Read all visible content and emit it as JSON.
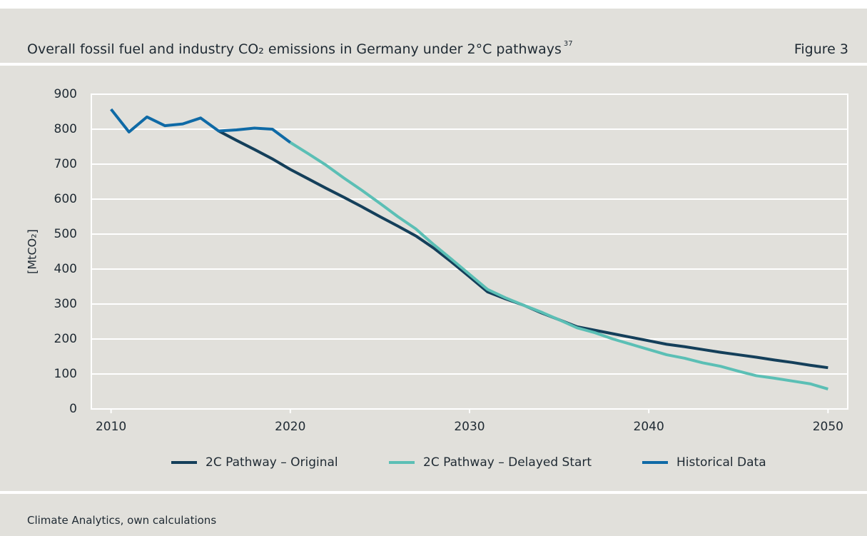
{
  "header": {
    "title": "Overall fossil fuel and industry CO₂ emissions in Germany under 2°C pathways",
    "footnote_ref": "37",
    "figure_label": "Figure 3"
  },
  "chart_data": {
    "type": "line",
    "y_label": "[MtCO₂]",
    "x": [
      2010,
      2011,
      2012,
      2013,
      2014,
      2015,
      2016,
      2017,
      2018,
      2019,
      2020,
      2021,
      2022,
      2023,
      2024,
      2025,
      2026,
      2027,
      2028,
      2029,
      2030,
      2031,
      2032,
      2033,
      2034,
      2035,
      2036,
      2037,
      2038,
      2039,
      2040,
      2041,
      2042,
      2043,
      2044,
      2045,
      2046,
      2047,
      2048,
      2049,
      2050
    ],
    "series": [
      {
        "name": "2C Pathway – Original",
        "color": "#143f5a",
        "values": [
          null,
          null,
          null,
          null,
          null,
          null,
          795,
          768,
          742,
          715,
          685,
          658,
          631,
          605,
          578,
          550,
          523,
          495,
          460,
          420,
          378,
          335,
          315,
          297,
          275,
          255,
          235,
          225,
          215,
          205,
          195,
          185,
          178,
          170,
          162,
          155,
          148,
          140,
          133,
          125,
          118
        ]
      },
      {
        "name": "2C Pathway – Delayed Start",
        "color": "#5bbfb5",
        "values": [
          null,
          null,
          null,
          null,
          null,
          null,
          null,
          null,
          null,
          null,
          762,
          730,
          697,
          660,
          625,
          588,
          550,
          515,
          470,
          428,
          385,
          342,
          318,
          297,
          277,
          255,
          232,
          218,
          200,
          185,
          170,
          155,
          145,
          132,
          122,
          108,
          95,
          88,
          80,
          72,
          57
        ]
      },
      {
        "name": "Historical Data",
        "color": "#0f6aa6",
        "values": [
          857,
          792,
          835,
          810,
          815,
          832,
          795,
          798,
          803,
          800,
          762,
          null,
          null,
          null,
          null,
          null,
          null,
          null,
          null,
          null,
          null,
          null,
          null,
          null,
          null,
          null,
          null,
          null,
          null,
          null,
          null,
          null,
          null,
          null,
          null,
          null,
          null,
          null,
          null,
          null,
          null
        ]
      }
    ],
    "xlim": [
      2008.9,
      2051.1
    ],
    "xticks": [
      2010,
      2020,
      2030,
      2040,
      2050
    ],
    "ylim": [
      0,
      900
    ],
    "yticks": [
      0,
      100,
      200,
      300,
      400,
      500,
      600,
      700,
      800,
      900
    ],
    "grid": true,
    "legend": "bottom"
  },
  "source": "Climate Analytics, own calculations"
}
